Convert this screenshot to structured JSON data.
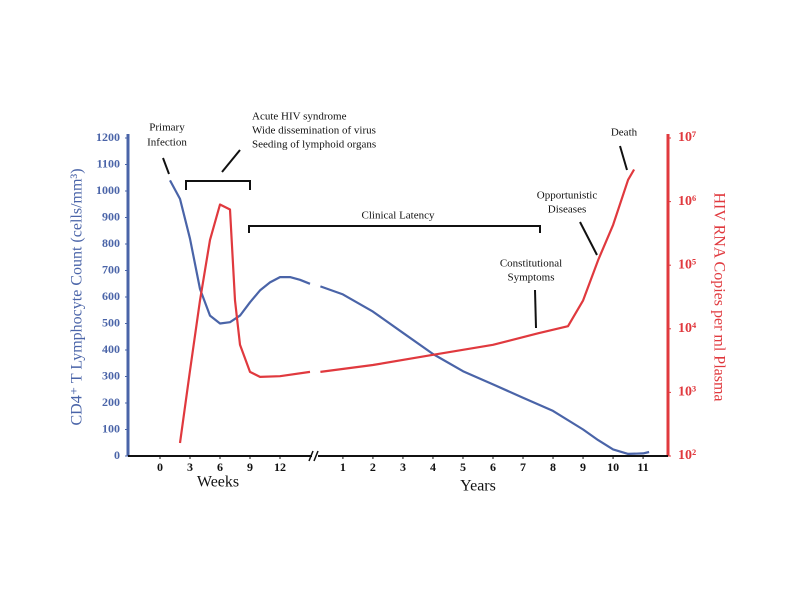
{
  "chart_data": {
    "type": "line",
    "ylabel": "CD4⁺ T Lymphocyte Count (cells/mm³)",
    "y2label": "HIV RNA Copies per ml Plasma",
    "ylim": [
      0,
      1200
    ],
    "yticks": [
      0,
      100,
      200,
      300,
      400,
      500,
      600,
      700,
      800,
      900,
      1000,
      1100,
      1200
    ],
    "y2lim": [
      100,
      10000000
    ],
    "y2log": true,
    "y2ticks": [
      {
        "value": 100,
        "label": "10²"
      },
      {
        "value": 1000,
        "label": "10³"
      },
      {
        "value": 10000,
        "label": "10⁴"
      },
      {
        "value": 100000,
        "label": "10⁵"
      },
      {
        "value": 1000000,
        "label": "10⁶"
      },
      {
        "value": 10000000,
        "label": "10⁷"
      }
    ],
    "x_segments": [
      {
        "label": "Weeks",
        "xlim": [
          -3.2,
          15.2
        ],
        "xticks": [
          0,
          3,
          6,
          9,
          12
        ]
      },
      {
        "label": "Years",
        "xlim": [
          0.17,
          11.83
        ],
        "xticks": [
          1,
          2,
          3,
          4,
          5,
          6,
          7,
          8,
          9,
          10,
          11
        ]
      }
    ],
    "series": [
      {
        "color": "#4a64a8",
        "axis": "y",
        "segments": [
          {
            "x": [
              1,
              2,
              3,
              4,
              5,
              6,
              7,
              8,
              9,
              10,
              11,
              12,
              13,
              14,
              15
            ],
            "values": [
              1040,
              970,
              820,
              630,
              530,
              500,
              505,
              530,
              580,
              625,
              655,
              675,
              675,
              665,
              650
            ]
          },
          {
            "x": [
              0.25,
              1,
              2,
              3,
              4,
              5,
              6,
              7,
              8,
              9,
              9.5,
              10,
              10.5,
              11,
              11.2
            ],
            "values": [
              640,
              610,
              545,
              465,
              385,
              320,
              270,
              220,
              170,
              100,
              60,
              25,
              8,
              10,
              15
            ]
          }
        ]
      },
      {
        "color": "#e0393e",
        "axis": "y2",
        "segments": [
          {
            "x": [
              2,
              3,
              4,
              5,
              6,
              7,
              7.5,
              8,
              9,
              10,
              12,
              15
            ],
            "values": [
              160,
              2200,
              28000,
              250000,
              900000,
              750000,
              28000,
              5600,
              2100,
              1750,
              1800,
              2100
            ]
          },
          {
            "x": [
              0.25,
              2,
              4,
              6,
              7.5,
              8.5,
              9,
              9.5,
              10,
              10.5,
              10.7
            ],
            "values": [
              2100,
              2700,
              3900,
              5600,
              8500,
              11000,
              28000,
              120000,
              430000,
              2200000,
              3200000
            ]
          }
        ]
      }
    ],
    "annotations": [
      {
        "lines": [
          "Primary",
          "Infection"
        ]
      },
      {
        "lines": [
          "Acute HIV syndrome",
          "Wide dissemination of virus",
          "Seeding of lymphoid organs"
        ]
      },
      {
        "lines": [
          "Clinical Latency"
        ]
      },
      {
        "lines": [
          "Constitutional",
          "Symptoms"
        ]
      },
      {
        "lines": [
          "Opportunistic",
          "Diseases"
        ]
      },
      {
        "lines": [
          "Death"
        ]
      }
    ]
  }
}
